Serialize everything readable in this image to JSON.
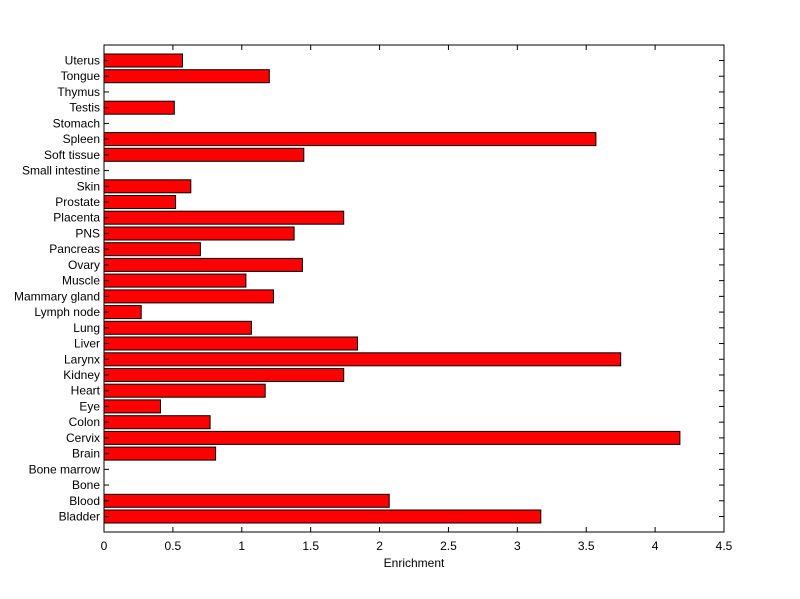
{
  "chart_data": {
    "type": "bar",
    "orientation": "horizontal",
    "xlabel": "Enrichment",
    "ylabel": "",
    "title": "",
    "xlim": [
      0,
      4.5
    ],
    "xticks": [
      "0",
      "0.5",
      "1",
      "1.5",
      "2",
      "2.5",
      "3",
      "3.5",
      "4",
      "4.5"
    ],
    "grid": false,
    "bar_color": "#ff0000",
    "bar_edge_color": "#000000",
    "categories": [
      "Bladder",
      "Blood",
      "Bone",
      "Bone marrow",
      "Brain",
      "Cervix",
      "Colon",
      "Eye",
      "Heart",
      "Kidney",
      "Larynx",
      "Liver",
      "Lung",
      "Lymph node",
      "Mammary gland",
      "Muscle",
      "Ovary",
      "Pancreas",
      "PNS",
      "Placenta",
      "Prostate",
      "Skin",
      "Small intestine",
      "Soft tissue",
      "Spleen",
      "Stomach",
      "Testis",
      "Thymus",
      "Tongue",
      "Uterus"
    ],
    "values": [
      3.17,
      2.07,
      0,
      0,
      0.81,
      4.18,
      0.77,
      0.41,
      1.17,
      1.74,
      3.75,
      1.84,
      1.07,
      0.27,
      1.23,
      1.03,
      1.44,
      0.7,
      1.38,
      1.74,
      0.52,
      0.63,
      0,
      1.45,
      3.57,
      0,
      0.51,
      0,
      1.2,
      0.57
    ]
  }
}
